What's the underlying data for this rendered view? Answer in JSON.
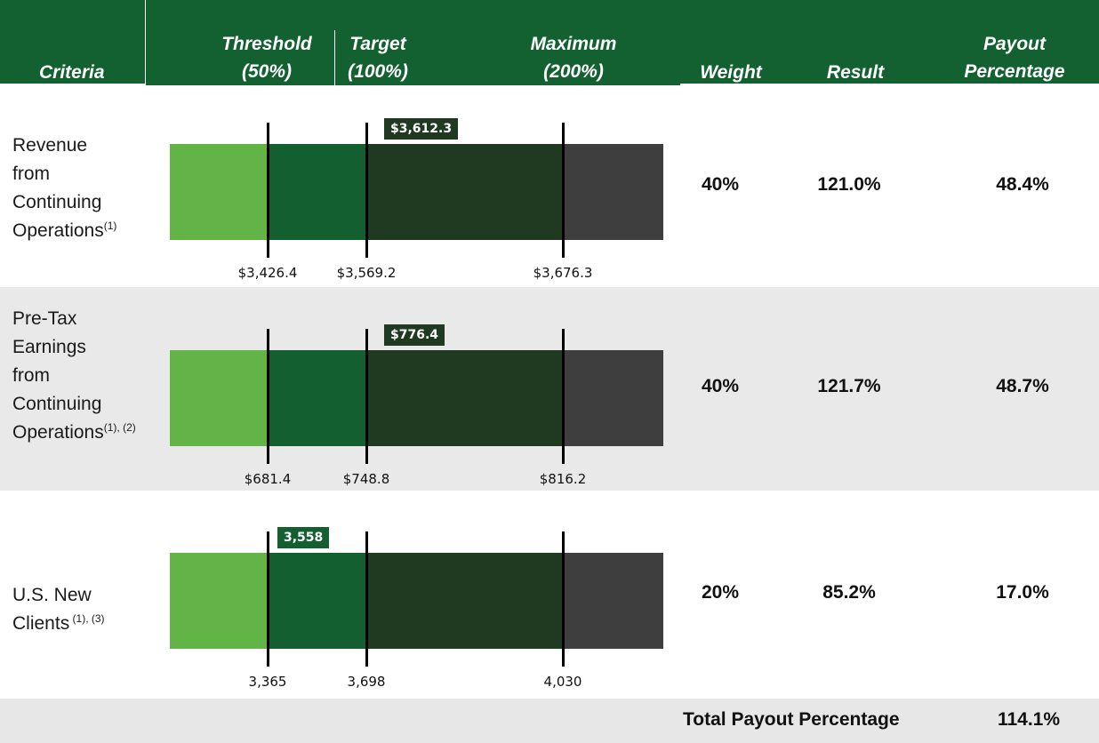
{
  "header": {
    "criteria": "Criteria",
    "threshold_l1": "Threshold",
    "threshold_l2": "(50%)",
    "target_l1": "Target",
    "target_l2": "(100%)",
    "maximum_l1": "Maximum",
    "maximum_l2": "(200%)",
    "weight": "Weight",
    "result": "Result",
    "payout_l1": "Payout",
    "payout_l2": "Percentage"
  },
  "colors": {
    "header_bg": "#136130",
    "below_threshold": "#62b446",
    "threshold_to_target": "#135f2f",
    "target_to_max": "#203a22",
    "above_max": "#3e3e3e",
    "band_alt": "#e8e9e8"
  },
  "chart_data": {
    "type": "bar",
    "scale_points": [
      "Threshold (50%)",
      "Target (100%)",
      "Maximum (200%)"
    ],
    "rows": [
      {
        "criteria_lines": [
          "Revenue",
          "from",
          "Continuing",
          "Operations"
        ],
        "footnote": "(1)",
        "threshold": "$3,426.4",
        "target": "$3,569.2",
        "maximum": "$3,676.3",
        "result_label": "$3,612.3",
        "result_position": "target-to-max",
        "weight": "40%",
        "result": "121.0%",
        "payout": "48.4%"
      },
      {
        "criteria_lines": [
          "Pre-Tax",
          "Earnings",
          "from",
          "Continuing",
          "Operations"
        ],
        "footnote": "(1), (2)",
        "threshold": "$681.4",
        "target": "$748.8",
        "maximum": "$816.2",
        "result_label": "$776.4",
        "result_position": "target-to-max",
        "weight": "40%",
        "result": "121.7%",
        "payout": "48.7%"
      },
      {
        "criteria_lines": [
          "U.S. New",
          "Clients"
        ],
        "footnote": " (1), (3)",
        "threshold": "3,365",
        "target": "3,698",
        "maximum": "4,030",
        "result_label": "3,558",
        "result_position": "threshold-to-target",
        "weight": "20%",
        "result": "85.2%",
        "payout": "17.0%"
      }
    ],
    "total_label": "Total Payout Percentage",
    "total_value": "114.1%"
  }
}
